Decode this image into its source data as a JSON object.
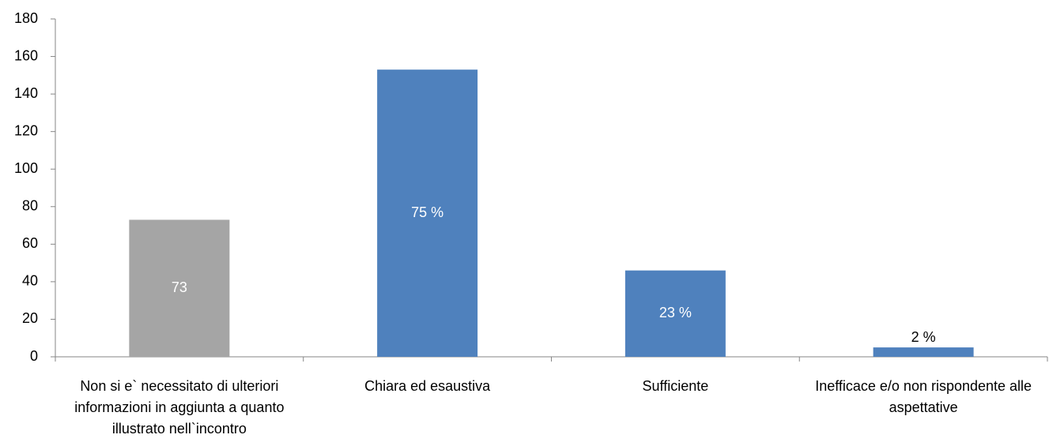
{
  "chart_data": {
    "type": "bar",
    "categories": [
      "Non si e` necessitato di ulteriori informazioni in aggiunta a quanto illustrato nell`incontro",
      "Chiara ed esaustiva",
      "Sufficiente",
      "Inefficace e/o non rispondente alle aspettative"
    ],
    "values": [
      73,
      153,
      46,
      5
    ],
    "colors": [
      "#a5a5a5",
      "#4f81bd",
      "#4f81bd",
      "#4f81bd"
    ],
    "value_labels": [
      "73",
      null,
      null,
      null
    ],
    "share_labels": [
      null,
      "75 %",
      "23  %",
      "2  %"
    ],
    "ylim": [
      0,
      180
    ],
    "yticks": [
      0,
      20,
      40,
      60,
      80,
      100,
      120,
      140,
      160,
      180
    ],
    "grid": false
  }
}
